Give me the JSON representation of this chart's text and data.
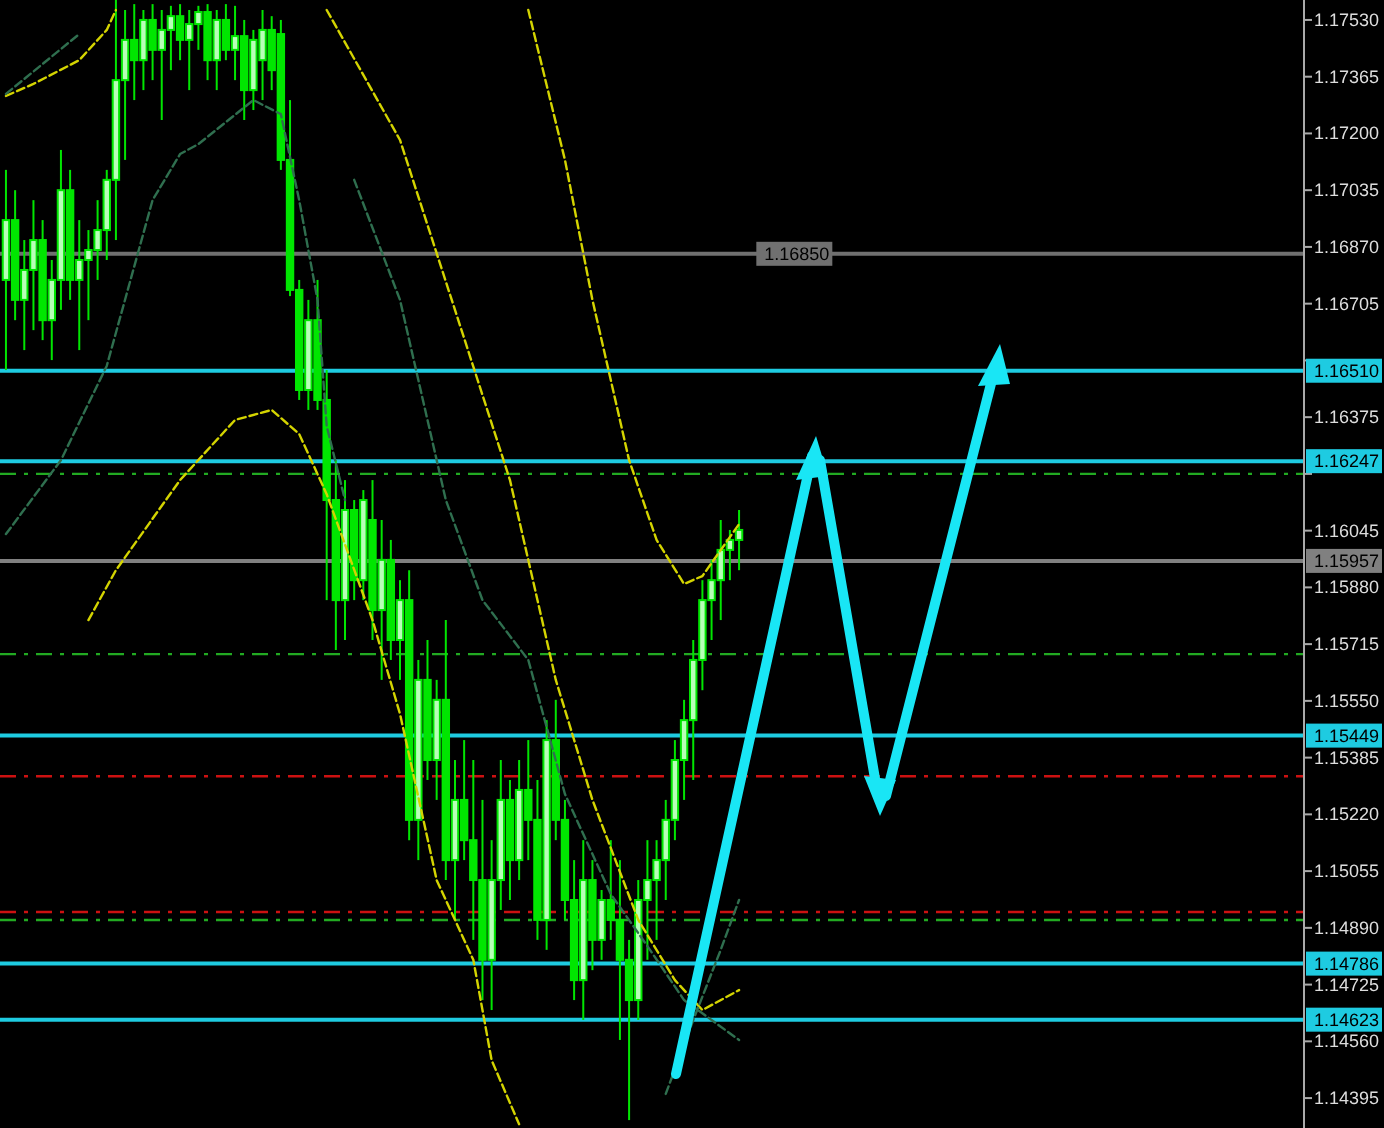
{
  "chart_data": {
    "type": "candlestick",
    "color": "#00e600",
    "categories": [
      null,
      null,
      null,
      null,
      null,
      null,
      null,
      null,
      null,
      null,
      null,
      null,
      null,
      null,
      null,
      null,
      null,
      null,
      null,
      null,
      null,
      null,
      null,
      null,
      null,
      null,
      null,
      null,
      null,
      null,
      null,
      null,
      null,
      null,
      null,
      null,
      null,
      null,
      null,
      null,
      null,
      null,
      null,
      null,
      null,
      null,
      null,
      null,
      null,
      null,
      null,
      null,
      null,
      null,
      null,
      null,
      null,
      null,
      null,
      null,
      null,
      null,
      null,
      null,
      null,
      null,
      null,
      null,
      null,
      null,
      null,
      null,
      null,
      null,
      null,
      null,
      null,
      null,
      null,
      null,
      null,
      null,
      null,
      null,
      null,
      null,
      null,
      null,
      null,
      null,
      null,
      null,
      null,
      null,
      null,
      null,
      null,
      null,
      null,
      null,
      null,
      null,
      null,
      null,
      null,
      null,
      null,
      null,
      null,
      null,
      null,
      null,
      null,
      null,
      null,
      null,
      null,
      null,
      null,
      null,
      null,
      null,
      null,
      null,
      null,
      null,
      null,
      null,
      null,
      null,
      null,
      null,
      null,
      null,
      null,
      null,
      null,
      null,
      null,
      null,
      null,
      null
    ],
    "ohlc": [
      [
        1.16774,
        1.17094,
        1.16512,
        1.16948
      ],
      [
        1.16948,
        1.17035,
        1.16657,
        1.16716
      ],
      [
        1.16716,
        1.1689,
        1.1657,
        1.16803
      ],
      [
        1.16803,
        1.17006,
        1.16628,
        1.1689
      ],
      [
        1.1689,
        1.16948,
        1.16599,
        1.16657
      ],
      [
        1.16657,
        1.16832,
        1.16541,
        1.16774
      ],
      [
        1.16774,
        1.17152,
        1.16687,
        1.17035
      ],
      [
        1.17035,
        1.17094,
        1.16716,
        1.16774
      ],
      [
        1.16774,
        1.16948,
        1.1657,
        1.16832
      ],
      [
        1.16832,
        1.16919,
        1.16657,
        1.16861
      ],
      [
        1.16861,
        1.17006,
        1.16774,
        1.16919
      ],
      [
        1.16919,
        1.17094,
        1.16832,
        1.17065
      ],
      [
        1.17065,
        1.17588,
        1.1689,
        1.17355
      ],
      [
        1.17355,
        1.17559,
        1.17123,
        1.17472
      ],
      [
        1.17472,
        1.17576,
        1.17297,
        1.17413
      ],
      [
        1.17413,
        1.17559,
        1.17326,
        1.1753
      ],
      [
        1.1753,
        1.17576,
        1.17355,
        1.17443
      ],
      [
        1.17443,
        1.17559,
        1.17239,
        1.17501
      ],
      [
        1.17501,
        1.17571,
        1.17384,
        1.17541
      ],
      [
        1.17541,
        1.17576,
        1.17413,
        1.17472
      ],
      [
        1.17472,
        1.17559,
        1.17326,
        1.17518
      ],
      [
        1.17518,
        1.17571,
        1.17443,
        1.17553
      ],
      [
        1.17553,
        1.17576,
        1.17355,
        1.17413
      ],
      [
        1.17413,
        1.17559,
        1.17326,
        1.1753
      ],
      [
        1.1753,
        1.17576,
        1.17413,
        1.17443
      ],
      [
        1.17443,
        1.17571,
        1.17355,
        1.17483
      ],
      [
        1.17483,
        1.1753,
        1.17239,
        1.17326
      ],
      [
        1.17326,
        1.17501,
        1.17268,
        1.17472
      ],
      [
        1.17413,
        1.17559,
        1.17297,
        1.17501
      ],
      [
        1.17501,
        1.17541,
        1.17326,
        1.17384
      ],
      [
        1.17489,
        1.1753,
        1.17094,
        1.17123
      ],
      [
        1.17123,
        1.17297,
        1.16727,
        1.16745
      ],
      [
        1.16745,
        1.16774,
        1.16425,
        1.16454
      ],
      [
        1.16454,
        1.16716,
        1.16396,
        1.16657
      ],
      [
        1.16657,
        1.16774,
        1.16396,
        1.16425
      ],
      [
        1.16425,
        1.16512,
        1.15843,
        1.16134
      ],
      [
        1.16134,
        1.1625,
        1.15698,
        1.15843
      ],
      [
        1.15843,
        1.16192,
        1.15727,
        1.16105
      ],
      [
        1.16105,
        1.16134,
        1.15843,
        1.15901
      ],
      [
        1.15901,
        1.16163,
        1.15843,
        1.16134
      ],
      [
        1.16076,
        1.16192,
        1.15727,
        1.15814
      ],
      [
        1.15814,
        1.16076,
        1.15611,
        1.1596
      ],
      [
        1.1596,
        1.16018,
        1.15669,
        1.15727
      ],
      [
        1.15727,
        1.15901,
        1.15611,
        1.15843
      ],
      [
        1.15843,
        1.1593,
        1.15145,
        1.15204
      ],
      [
        1.15204,
        1.15669,
        1.15087,
        1.15611
      ],
      [
        1.15611,
        1.15727,
        1.1532,
        1.15378
      ],
      [
        1.15378,
        1.15611,
        1.15262,
        1.15553
      ],
      [
        1.15553,
        1.15785,
        1.15029,
        1.15087
      ],
      [
        1.15087,
        1.15378,
        1.14913,
        1.15262
      ],
      [
        1.15262,
        1.15436,
        1.15087,
        1.15145
      ],
      [
        1.15145,
        1.15378,
        1.14855,
        1.15029
      ],
      [
        1.15029,
        1.15262,
        1.1468,
        1.14797
      ],
      [
        1.14797,
        1.15145,
        1.14651,
        1.15029
      ],
      [
        1.15029,
        1.15378,
        1.14942,
        1.15262
      ],
      [
        1.15262,
        1.1532,
        1.14971,
        1.15087
      ],
      [
        1.15087,
        1.15378,
        1.15029,
        1.15291
      ],
      [
        1.15291,
        1.15436,
        1.15087,
        1.15204
      ],
      [
        1.15204,
        1.1532,
        1.14855,
        1.14913
      ],
      [
        1.14913,
        1.15494,
        1.14826,
        1.15436
      ],
      [
        1.15436,
        1.15553,
        1.15145,
        1.15204
      ],
      [
        1.15204,
        1.15262,
        1.14913,
        1.14971
      ],
      [
        1.14971,
        1.15087,
        1.1468,
        1.14738
      ],
      [
        1.14738,
        1.15145,
        1.14622,
        1.15029
      ],
      [
        1.15029,
        1.15087,
        1.14767,
        1.14855
      ],
      [
        1.14855,
        1.15,
        1.14797,
        1.14971
      ],
      [
        1.14971,
        1.15145,
        1.14855,
        1.14913
      ],
      [
        1.14913,
        1.15087,
        1.14564,
        1.14797
      ],
      [
        1.14797,
        1.14855,
        1.14331,
        1.1468
      ],
      [
        1.1468,
        1.15029,
        1.14622,
        1.14971
      ],
      [
        1.14971,
        1.15145,
        1.14797,
        1.15029
      ],
      [
        1.15029,
        1.15145,
        1.14855,
        1.15087
      ],
      [
        1.15087,
        1.15262,
        1.14971,
        1.15204
      ],
      [
        1.15204,
        1.15436,
        1.15145,
        1.15378
      ],
      [
        1.15378,
        1.15553,
        1.15262,
        1.15494
      ],
      [
        1.15494,
        1.15727,
        1.1532,
        1.15669
      ],
      [
        1.15669,
        1.15901,
        1.15581,
        1.15843
      ],
      [
        1.15843,
        1.1596,
        1.15727,
        1.15901
      ],
      [
        1.15901,
        1.16076,
        1.15785,
        1.15989
      ],
      [
        1.15989,
        1.16047,
        1.15901,
        1.16018
      ],
      [
        1.16018,
        1.16105,
        1.1593,
        1.16047
      ],
      null,
      null,
      null,
      null,
      null,
      null,
      null,
      null,
      null,
      null,
      null,
      null,
      null,
      null,
      null,
      null,
      null,
      null,
      null,
      null,
      null,
      null,
      null,
      null,
      null,
      null,
      null,
      null,
      null,
      null,
      null,
      null,
      null,
      null,
      null,
      null,
      null,
      null,
      null,
      null,
      null,
      null,
      null,
      null,
      null,
      null,
      null,
      null,
      null,
      null,
      null,
      null,
      null,
      null,
      null,
      null,
      null,
      null,
      null,
      null,
      null
    ],
    "series": [
      {
        "type": "line",
        "color": "#d4d400",
        "line_style": "dashed",
        "values": [
          1.17309,
          null,
          null,
          1.17344,
          null,
          null,
          null,
          null,
          1.17413,
          null,
          null,
          1.17501,
          1.17559,
          null,
          null,
          null,
          null,
          null,
          null,
          null,
          null,
          null,
          null,
          null,
          null,
          null,
          null,
          null,
          null,
          null,
          null,
          null,
          null,
          null,
          null,
          null,
          null,
          null,
          null,
          null,
          null,
          null,
          null,
          null,
          null,
          null,
          null,
          null,
          null,
          null,
          null,
          null,
          null,
          null,
          null,
          null,
          null,
          null,
          null,
          null,
          null,
          null,
          null,
          null,
          null,
          null,
          null,
          null,
          null,
          null,
          null,
          null,
          null,
          null,
          null,
          null,
          null,
          null,
          null,
          null,
          null,
          null,
          null,
          null,
          null,
          null,
          null,
          null,
          null,
          null,
          null,
          null,
          null,
          null,
          null,
          null,
          null,
          null,
          null,
          null,
          null,
          null,
          null,
          null,
          null,
          null,
          null,
          null,
          null,
          null,
          null,
          null,
          null,
          null,
          null,
          null,
          null,
          null,
          null,
          null,
          null,
          null,
          null,
          null,
          null,
          null,
          null,
          null,
          null,
          null,
          null,
          null,
          null,
          null,
          null,
          null,
          null,
          null,
          null,
          null,
          null,
          null
        ]
      },
      {
        "type": "line",
        "color": "#d4d400",
        "line_style": "dashed",
        "values": [
          null,
          null,
          null,
          null,
          null,
          null,
          null,
          null,
          null,
          null,
          null,
          null,
          null,
          null,
          null,
          null,
          null,
          null,
          null,
          null,
          null,
          null,
          null,
          null,
          null,
          null,
          null,
          null,
          null,
          null,
          null,
          null,
          null,
          null,
          null,
          null,
          null,
          null,
          null,
          null,
          null,
          null,
          null,
          null,
          null,
          null,
          null,
          null,
          null,
          null,
          null,
          null,
          null,
          null,
          null,
          null,
          null,
          1.17559,
          null,
          null,
          null,
          1.17123,
          null,
          null,
          1.16716,
          null,
          null,
          null,
          1.1625,
          null,
          null,
          1.16018,
          null,
          null,
          1.1589,
          null,
          1.15913,
          null,
          null,
          null,
          1.16064,
          null,
          null,
          null,
          null,
          null,
          null,
          null,
          null,
          null,
          null,
          null,
          null,
          null,
          null,
          null,
          null,
          null,
          null,
          null,
          null,
          null,
          null,
          null,
          null,
          null,
          null,
          null,
          null,
          null,
          null,
          null,
          null,
          null,
          null,
          null,
          null,
          null,
          null,
          null,
          null,
          null,
          null,
          null,
          null,
          null,
          null,
          null,
          null,
          null,
          null,
          null,
          null,
          null,
          null,
          null,
          null,
          null,
          null,
          null,
          null,
          null
        ]
      },
      {
        "type": "line",
        "color": "#d4d400",
        "line_style": "dashed",
        "values": [
          null,
          null,
          null,
          null,
          null,
          null,
          null,
          null,
          null,
          null,
          null,
          null,
          null,
          null,
          null,
          null,
          null,
          null,
          null,
          null,
          null,
          null,
          null,
          null,
          null,
          null,
          null,
          null,
          null,
          null,
          null,
          null,
          null,
          null,
          null,
          1.17559,
          null,
          null,
          null,
          null,
          null,
          null,
          null,
          1.17181,
          null,
          null,
          null,
          null,
          null,
          1.16687,
          null,
          null,
          null,
          null,
          null,
          1.16192,
          null,
          null,
          null,
          null,
          1.15611,
          null,
          null,
          null,
          1.15262,
          null,
          null,
          null,
          null,
          1.14913,
          null,
          null,
          null,
          1.14738,
          null,
          null,
          1.14651,
          null,
          null,
          null,
          1.14709,
          null,
          null,
          null,
          null,
          null,
          null,
          null,
          null,
          null,
          null,
          null,
          null,
          null,
          null,
          null,
          null,
          null,
          null,
          null,
          null,
          null,
          null,
          null,
          null,
          null,
          null,
          null,
          null,
          null,
          null,
          null,
          null,
          null,
          null,
          null,
          null,
          null,
          null,
          null,
          null,
          null,
          null,
          null,
          null,
          null,
          null,
          null,
          null,
          null,
          null,
          null,
          null,
          null,
          null,
          null,
          null,
          null,
          null,
          null,
          null,
          null
        ]
      },
      {
        "type": "line",
        "color": "#d4d400",
        "line_style": "dashed",
        "values": [
          null,
          null,
          null,
          null,
          null,
          null,
          null,
          null,
          null,
          1.15785,
          null,
          null,
          1.1593,
          null,
          null,
          null,
          null,
          null,
          null,
          1.16192,
          null,
          null,
          null,
          null,
          null,
          1.16367,
          null,
          null,
          null,
          1.16396,
          null,
          null,
          1.16326,
          null,
          null,
          1.16151,
          null,
          null,
          null,
          null,
          1.15785,
          null,
          null,
          1.15512,
          null,
          null,
          null,
          1.15029,
          null,
          null,
          null,
          1.14797,
          null,
          1.14505,
          null,
          null,
          1.14319,
          null,
          null,
          null,
          null,
          null,
          null,
          null,
          null,
          null,
          null,
          null,
          null,
          null,
          null,
          null,
          null,
          null,
          null,
          null,
          null,
          null,
          null,
          null,
          null,
          null,
          null,
          null,
          null,
          null,
          null,
          null,
          null,
          null,
          null,
          null,
          null,
          null,
          null,
          null,
          null,
          null,
          null,
          null,
          null,
          null,
          null,
          null,
          null,
          null,
          null,
          null,
          null,
          null,
          null,
          null,
          null,
          null,
          null,
          null,
          null,
          null,
          null,
          null,
          null,
          null,
          null,
          null,
          null,
          null,
          null,
          null,
          null,
          null,
          null,
          null,
          null,
          null,
          null,
          null,
          null,
          null,
          null,
          null,
          null,
          null
        ]
      },
      {
        "type": "line",
        "color": "#2f6f4f",
        "line_style": "dashed",
        "values": [
          1.17315,
          null,
          null,
          null,
          null,
          null,
          null,
          null,
          1.17489,
          null,
          null,
          null,
          null,
          null,
          null,
          null,
          null,
          null,
          null,
          null,
          null,
          null,
          null,
          null,
          null,
          null,
          null,
          null,
          null,
          null,
          null,
          null,
          null,
          null,
          null,
          null,
          null,
          null,
          null,
          null,
          null,
          null,
          null,
          null,
          null,
          null,
          null,
          null,
          null,
          null,
          null,
          null,
          null,
          null,
          null,
          null,
          null,
          null,
          null,
          null,
          null,
          null,
          null,
          null,
          null,
          null,
          null,
          null,
          null,
          null,
          null,
          null,
          null,
          null,
          null,
          null,
          null,
          null,
          null,
          null,
          null,
          null,
          null,
          null,
          null,
          null,
          null,
          null,
          null,
          null,
          null,
          null,
          null,
          null,
          null,
          null,
          null,
          null,
          null,
          null,
          null,
          null,
          null,
          null,
          null,
          null,
          null,
          null,
          null,
          null,
          null,
          null,
          null,
          null,
          null,
          null,
          null,
          null,
          null,
          null,
          null,
          null,
          null,
          null,
          null,
          null,
          null,
          null,
          null,
          null,
          null,
          null,
          null,
          null,
          null,
          null,
          null,
          null,
          null,
          null,
          null,
          null
        ]
      },
      {
        "type": "line",
        "color": "#2f6f4f",
        "line_style": "dashed",
        "values": [
          1.16035,
          null,
          null,
          null,
          null,
          null,
          1.1625,
          null,
          null,
          null,
          null,
          1.16524,
          null,
          null,
          null,
          null,
          1.17006,
          null,
          null,
          1.1714,
          null,
          1.17169,
          null,
          null,
          null,
          null,
          null,
          1.17297,
          null,
          null,
          1.17256,
          null,
          1.17006,
          null,
          1.16716,
          1.16349,
          null,
          1.16134,
          null,
          null,
          null,
          null,
          null,
          null,
          null,
          null,
          null,
          null,
          null,
          null,
          null,
          null,
          null,
          null,
          null,
          null,
          null,
          null,
          null,
          null,
          null,
          null,
          null,
          null,
          null,
          null,
          null,
          null,
          null,
          null,
          null,
          null,
          null,
          null,
          null,
          null,
          null,
          null,
          null,
          null,
          null,
          null,
          null,
          null,
          null,
          null,
          null,
          null,
          null,
          null,
          null,
          null,
          null,
          null,
          null,
          null,
          null,
          null,
          null,
          null,
          null,
          null,
          null,
          null,
          null,
          null,
          null,
          null,
          null,
          null,
          null,
          null,
          null,
          null,
          null,
          null,
          null,
          null,
          null,
          null,
          null,
          null,
          null,
          null,
          null,
          null,
          null,
          null,
          null,
          null,
          null,
          null,
          null,
          null,
          null,
          null,
          null,
          null,
          null,
          null,
          null,
          null
        ]
      },
      {
        "type": "line",
        "color": "#2f6f4f",
        "line_style": "dashed",
        "values": [
          null,
          null,
          null,
          null,
          null,
          null,
          null,
          null,
          null,
          null,
          null,
          null,
          null,
          null,
          null,
          null,
          null,
          null,
          null,
          null,
          null,
          null,
          null,
          null,
          null,
          null,
          null,
          null,
          null,
          null,
          null,
          null,
          null,
          null,
          null,
          null,
          null,
          null,
          1.17065,
          null,
          null,
          null,
          null,
          1.16716,
          null,
          null,
          null,
          null,
          1.16134,
          null,
          null,
          null,
          1.15843,
          null,
          null,
          null,
          null,
          1.15669,
          null,
          null,
          null,
          1.15279,
          null,
          null,
          null,
          null,
          1.14988,
          null,
          null,
          null,
          1.14837,
          null,
          null,
          null,
          1.1468,
          null,
          null,
          null,
          null,
          null,
          1.14564,
          null,
          null,
          null,
          null,
          null,
          null,
          null,
          null,
          null,
          null,
          null,
          null,
          null,
          null,
          null,
          null,
          null,
          null,
          null,
          null,
          null,
          null,
          null,
          null,
          null,
          null,
          null,
          null,
          null,
          null,
          null,
          null,
          null,
          null,
          null,
          null,
          null,
          null,
          null,
          null,
          null,
          null,
          null,
          null,
          null,
          null,
          null,
          null,
          null,
          null,
          null,
          null,
          null,
          null,
          null,
          null,
          null,
          null,
          null,
          null,
          null
        ]
      },
      {
        "type": "line",
        "color": "#2f6f4f",
        "line_style": "dashed",
        "values": [
          null,
          null,
          null,
          null,
          null,
          null,
          null,
          null,
          null,
          null,
          null,
          null,
          null,
          null,
          null,
          null,
          null,
          null,
          null,
          null,
          null,
          null,
          null,
          null,
          null,
          null,
          null,
          null,
          null,
          null,
          null,
          null,
          null,
          null,
          null,
          null,
          null,
          null,
          null,
          null,
          null,
          null,
          null,
          null,
          null,
          null,
          null,
          null,
          null,
          null,
          null,
          null,
          null,
          null,
          null,
          null,
          null,
          null,
          null,
          null,
          null,
          null,
          null,
          null,
          null,
          null,
          null,
          null,
          null,
          null,
          null,
          null,
          1.14407,
          null,
          null,
          1.14622,
          null,
          null,
          1.14826,
          null,
          1.14971,
          null,
          null,
          null,
          null,
          null,
          null,
          null,
          null,
          null,
          null,
          null,
          null,
          null,
          null,
          null,
          null,
          null,
          null,
          null,
          null,
          null,
          null,
          null,
          null,
          null,
          null,
          null,
          null,
          null,
          null,
          null,
          null,
          null,
          null,
          null,
          null,
          null,
          null,
          null,
          null,
          null,
          null,
          null,
          null,
          null,
          null,
          null,
          null,
          null,
          null,
          null,
          null,
          null,
          null,
          null,
          null,
          null,
          null,
          null,
          null,
          null
        ]
      }
    ],
    "ylim": [
      1.14308,
      1.17588
    ],
    "yticks": [
      {
        "value": 1.1753,
        "label": "1.17530"
      },
      {
        "value": 1.17365,
        "label": "1.17365"
      },
      {
        "value": 1.172,
        "label": "1.17200"
      },
      {
        "value": 1.17035,
        "label": "1.17035"
      },
      {
        "value": 1.1687,
        "label": "1.16870"
      },
      {
        "value": 1.16705,
        "label": "1.16705"
      },
      {
        "value": 1.1654,
        "label": null
      },
      {
        "value": 1.16375,
        "label": "1.16375"
      },
      {
        "value": 1.1621,
        "label": null
      },
      {
        "value": 1.16045,
        "label": "1.16045"
      },
      {
        "value": 1.1588,
        "label": "1.15880"
      },
      {
        "value": 1.15715,
        "label": "1.15715"
      },
      {
        "value": 1.1555,
        "label": "1.15550"
      },
      {
        "value": 1.15385,
        "label": "1.15385"
      },
      {
        "value": 1.1522,
        "label": "1.15220"
      },
      {
        "value": 1.15055,
        "label": "1.15055"
      },
      {
        "value": 1.1489,
        "label": "1.14890"
      },
      {
        "value": 1.14725,
        "label": "1.14725"
      },
      {
        "value": 1.1456,
        "label": "1.14560"
      },
      {
        "value": 1.14395,
        "label": "1.14395"
      }
    ],
    "tick_labels": "y",
    "ref_lines": [
      {
        "axis": "y",
        "value": 1.1685,
        "label": "1.16850",
        "color": "#707070",
        "line_style": "solid"
      },
      {
        "axis": "y",
        "value": 1.1651,
        "label": "1.16510",
        "color": "#1ecbe1",
        "line_style": "solid"
      },
      {
        "axis": "y",
        "value": 1.16247,
        "label": "1.16247",
        "color": "#1ecbe1",
        "line_style": "solid"
      },
      {
        "axis": "y",
        "value": 1.15957,
        "label": "1.15957",
        "color": "#808080",
        "line_style": "solid"
      },
      {
        "axis": "y",
        "value": 1.15449,
        "label": "1.15449",
        "color": "#1ecbe1",
        "line_style": "solid"
      },
      {
        "axis": "y",
        "value": 1.14786,
        "label": "1.14786",
        "color": "#1ecbe1",
        "line_style": "solid"
      },
      {
        "axis": "y",
        "value": 1.14623,
        "label": "1.14623",
        "color": "#1ecbe1",
        "line_style": "solid"
      },
      {
        "axis": "y",
        "value": 1.1621,
        "color": "#22aa22",
        "line_style": "dashed"
      },
      {
        "axis": "y",
        "value": 1.15686,
        "color": "#22aa22",
        "line_style": "dashed"
      },
      {
        "axis": "y",
        "value": 1.14913,
        "color": "#22aa22",
        "line_style": "dashed"
      },
      {
        "axis": "y",
        "value": 1.15331,
        "color": "#cc1111",
        "line_style": "dashed"
      },
      {
        "axis": "y",
        "value": 1.14936,
        "color": "#cc1111",
        "line_style": "dashed"
      }
    ]
  }
}
